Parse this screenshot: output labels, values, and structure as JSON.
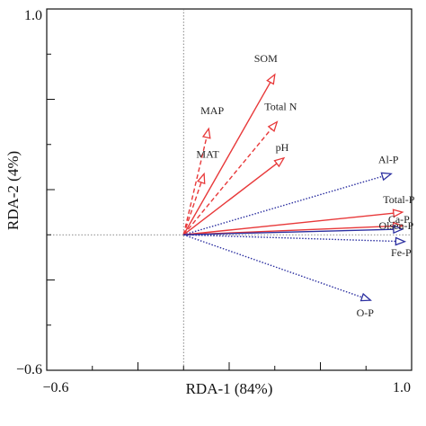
{
  "chart_data": {
    "type": "scatter",
    "subtype": "rda-biplot",
    "xlabel": "RDA-1 (84%)",
    "ylabel": "RDA-2 (4%)",
    "xlim": [
      -0.6,
      1.0
    ],
    "ylim": [
      -0.6,
      1.0
    ],
    "x_ticks": [
      -0.6,
      1.0
    ],
    "x_tick_labels": [
      "−0.6",
      "1.0"
    ],
    "y_ticks": [
      -0.6,
      1.0
    ],
    "y_tick_labels": [
      "−0.6",
      "1.0"
    ],
    "grid": false,
    "reference_lines": {
      "x": 0,
      "y": 0,
      "style": "dotted"
    },
    "colors": {
      "red": "#e8393a",
      "blue": "#2b2fa0"
    },
    "vectors": [
      {
        "label": "SOM",
        "x": 0.4,
        "y": 0.71,
        "color": "red",
        "style": "solid"
      },
      {
        "label": "Total N",
        "x": 0.41,
        "y": 0.5,
        "color": "red",
        "style": "dashed"
      },
      {
        "label": "MAP",
        "x": 0.11,
        "y": 0.47,
        "color": "red",
        "style": "dashed"
      },
      {
        "label": "MAT",
        "x": 0.09,
        "y": 0.27,
        "color": "red",
        "style": "dashed"
      },
      {
        "label": "pH",
        "x": 0.44,
        "y": 0.34,
        "color": "red",
        "style": "solid"
      },
      {
        "label": "Al-P",
        "x": 0.91,
        "y": 0.27,
        "color": "blue",
        "style": "dotted"
      },
      {
        "label": "Total-P",
        "x": 0.96,
        "y": 0.1,
        "color": "red",
        "style": "solid"
      },
      {
        "label": "Ca-P",
        "x": 0.96,
        "y": 0.04,
        "color": "red",
        "style": "solid"
      },
      {
        "label": "Olsen-P",
        "x": 0.96,
        "y": 0.025,
        "color": "blue",
        "style": "solid"
      },
      {
        "label": "Fe-P",
        "x": 0.97,
        "y": -0.03,
        "color": "blue",
        "style": "dotted"
      },
      {
        "label": "O-P",
        "x": 0.82,
        "y": -0.29,
        "color": "blue",
        "style": "dotted"
      }
    ]
  }
}
